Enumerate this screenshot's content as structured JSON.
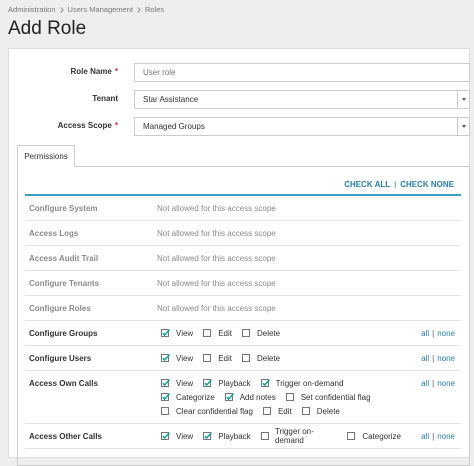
{
  "breadcrumb": [
    "Administration",
    "Users Management",
    "Roles"
  ],
  "title": "Add Role",
  "required_mark": "*",
  "form": [
    {
      "label": "Role Name",
      "required": true,
      "kind": "input",
      "placeholder": "User role"
    },
    {
      "label": "Tenant",
      "required": false,
      "kind": "select",
      "value": "Star Assistance"
    },
    {
      "label": "Access Scope",
      "required": true,
      "kind": "select",
      "value": "Managed Groups"
    }
  ],
  "tab": "Permissions",
  "check_all": "CHECK ALL",
  "check_none": "CHECK NONE",
  "separator": "|",
  "all": "all",
  "none": "none",
  "permissions": [
    {
      "name": "Configure System",
      "note": "Not allowed for this access scope"
    },
    {
      "name": "Access Logs",
      "note": "Not allowed for this access scope"
    },
    {
      "name": "Access Audit Trail",
      "note": "Not allowed for this access scope"
    },
    {
      "name": "Configure Tenants",
      "note": "Not allowed for this access scope"
    },
    {
      "name": "Configure Roles",
      "note": "Not allowed for this access scope"
    },
    {
      "name": "Configure Groups",
      "options": [
        [
          {
            "label": "View",
            "checked": true
          },
          {
            "label": "Edit",
            "checked": false
          },
          {
            "label": "Delete",
            "checked": false
          }
        ]
      ]
    },
    {
      "name": "Configure Users",
      "options": [
        [
          {
            "label": "View",
            "checked": true
          },
          {
            "label": "Edit",
            "checked": false
          },
          {
            "label": "Delete",
            "checked": false
          }
        ]
      ]
    },
    {
      "name": "Access Own Calls",
      "options": [
        [
          {
            "label": "View",
            "checked": true
          },
          {
            "label": "Playback",
            "checked": true
          },
          {
            "label": "Trigger on-demand",
            "checked": true
          }
        ],
        [
          {
            "label": "Categorize",
            "checked": true
          },
          {
            "label": "Add notes",
            "checked": true
          },
          {
            "label": "Set confidential flag",
            "checked": false
          }
        ],
        [
          {
            "label": "Clear confidential flag",
            "checked": false
          },
          {
            "label": "Edit",
            "checked": false
          },
          {
            "label": "Delete",
            "checked": false
          }
        ]
      ]
    },
    {
      "name": "Access Other Calls",
      "options": [
        [
          {
            "label": "View",
            "checked": true
          },
          {
            "label": "Playback",
            "checked": true
          },
          {
            "label": "Trigger on-demand",
            "checked": false
          },
          {
            "label": "Categorize",
            "checked": false
          }
        ]
      ]
    }
  ]
}
